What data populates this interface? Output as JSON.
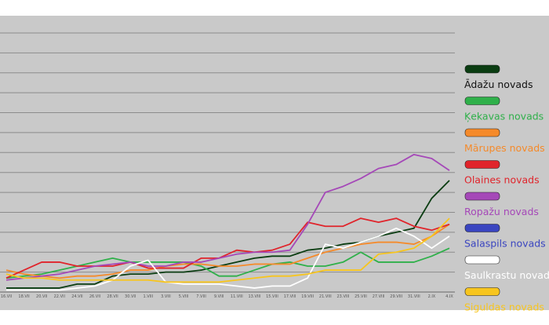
{
  "chart_data": {
    "type": "line",
    "categories": [
      "16.VII",
      "18.VII",
      "20.VII",
      "22.VII",
      "24.VII",
      "26.VII",
      "28.VII",
      "30.VII",
      "1.VIII",
      "3.VIII",
      "5.VIII",
      "7.VIII",
      "9.VIII",
      "11.VIII",
      "13.VIII",
      "15.VIII",
      "17.VIII",
      "19.VIII",
      "21.VIII",
      "23.VIII",
      "25.VIII",
      "27.VIII",
      "29.VIII",
      "31.VIII",
      "2.IX",
      "4.IX"
    ],
    "ylim": [
      0,
      13
    ],
    "yticks": [
      0,
      1,
      2,
      3,
      4,
      5,
      6,
      7,
      8,
      9,
      10,
      11,
      12,
      13
    ],
    "grid": true,
    "series": [
      {
        "name": "Ādažu novads",
        "color": "#0b3d12",
        "values": [
          0.2,
          0.2,
          0.2,
          0.2,
          0.4,
          0.4,
          0.8,
          0.9,
          0.9,
          1.0,
          1.0,
          1.1,
          1.3,
          1.5,
          1.7,
          1.8,
          1.8,
          2.1,
          2.2,
          2.4,
          2.5,
          2.8,
          3.0,
          3.2,
          4.7,
          5.6
        ]
      },
      {
        "name": "Ķekavas novads",
        "color": "#2fb04a",
        "values": [
          0.7,
          0.8,
          0.9,
          1.1,
          1.3,
          1.5,
          1.7,
          1.5,
          1.5,
          1.5,
          1.5,
          1.3,
          0.8,
          0.8,
          1.1,
          1.4,
          1.5,
          1.3,
          1.3,
          1.5,
          2.0,
          1.5,
          1.5,
          1.5,
          1.8,
          2.2
        ]
      },
      {
        "name": "Mārupes novads",
        "color": "#f58a2a",
        "values": [
          1.1,
          0.9,
          0.8,
          0.7,
          0.8,
          0.8,
          0.9,
          1.1,
          1.1,
          1.3,
          1.4,
          1.4,
          1.3,
          1.3,
          1.4,
          1.4,
          1.4,
          1.7,
          2.0,
          2.2,
          2.4,
          2.5,
          2.5,
          2.4,
          2.8,
          3.4
        ]
      },
      {
        "name": "Olaines novads",
        "color": "#e0242b",
        "values": [
          0.7,
          1.1,
          1.5,
          1.5,
          1.3,
          1.3,
          1.3,
          1.5,
          1.2,
          1.2,
          1.2,
          1.7,
          1.7,
          2.1,
          2.0,
          2.1,
          2.4,
          3.5,
          3.3,
          3.3,
          3.7,
          3.5,
          3.7,
          3.3,
          3.1,
          3.4
        ]
      },
      {
        "name": "Ropažu novads",
        "color": "#a548b8",
        "values": [
          0.6,
          0.7,
          0.8,
          0.9,
          1.1,
          1.3,
          1.4,
          1.5,
          1.3,
          1.3,
          1.5,
          1.5,
          1.7,
          1.9,
          2.0,
          2.0,
          2.1,
          3.4,
          5.0,
          5.3,
          5.7,
          6.2,
          6.4,
          6.9,
          6.7,
          6.1
        ]
      },
      {
        "name": "Salaspils novads",
        "color": "#3a45c0",
        "values": [
          null,
          null,
          null,
          null,
          null,
          null,
          null,
          null,
          null,
          null,
          null,
          null,
          null,
          null,
          null,
          null,
          null,
          null,
          null,
          null,
          null,
          null,
          null,
          null,
          null,
          null
        ]
      },
      {
        "name": "Saulkrastu novads",
        "color": "#ffffff",
        "values": [
          0.1,
          0.1,
          0.1,
          0.1,
          0.2,
          0.3,
          0.6,
          1.3,
          1.6,
          0.5,
          0.4,
          0.4,
          0.4,
          0.3,
          0.2,
          0.3,
          0.3,
          0.7,
          2.4,
          2.2,
          2.5,
          2.8,
          3.2,
          2.8,
          2.2,
          2.8
        ]
      },
      {
        "name": "Siguldas novads",
        "color": "#f7c51e",
        "values": [
          0.9,
          0.7,
          0.7,
          0.6,
          0.6,
          0.6,
          0.6,
          0.6,
          0.6,
          0.5,
          0.5,
          0.5,
          0.5,
          0.6,
          0.7,
          0.8,
          0.8,
          0.9,
          1.1,
          1.1,
          1.1,
          1.9,
          2.0,
          2.2,
          2.8,
          3.7
        ]
      }
    ]
  }
}
